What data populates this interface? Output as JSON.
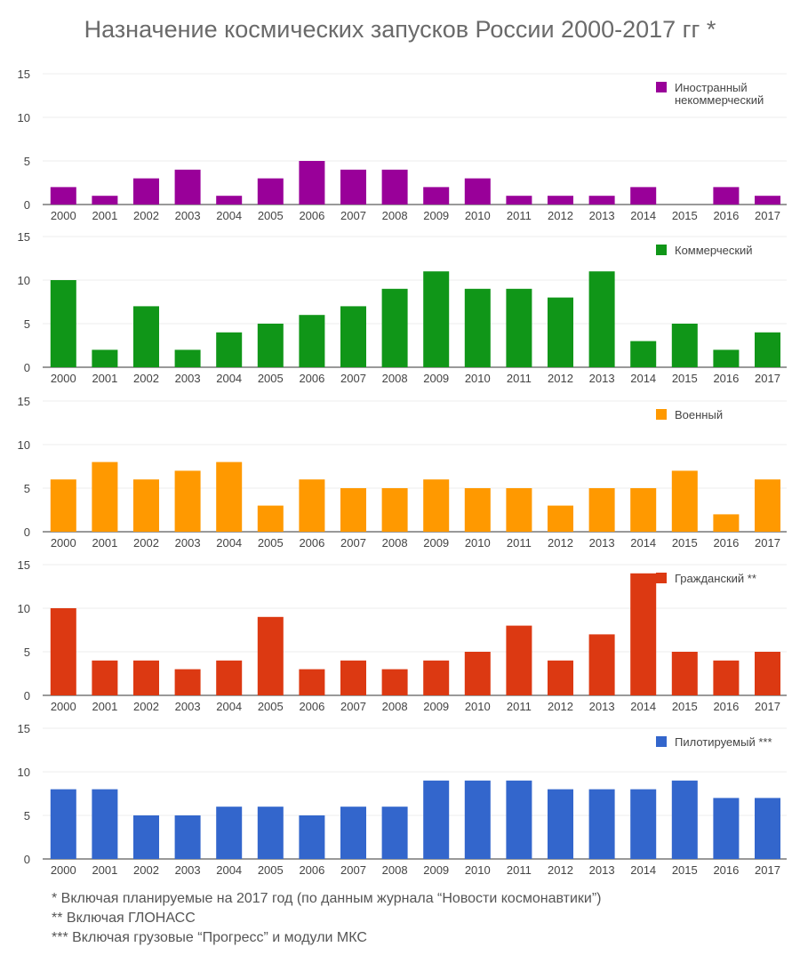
{
  "title": "Назначение космических запусков России 2000-2017 гг *",
  "chart_data": [
    {
      "type": "bar",
      "legend": "Иностранный некоммерческий",
      "legend_lines": [
        "Иностранный",
        "некоммерческий"
      ],
      "color": "#990099",
      "categories": [
        "2000",
        "2001",
        "2002",
        "2003",
        "2004",
        "2005",
        "2006",
        "2007",
        "2008",
        "2009",
        "2010",
        "2011",
        "2012",
        "2013",
        "2014",
        "2015",
        "2016",
        "2017"
      ],
      "values": [
        2,
        1,
        3,
        4,
        1,
        3,
        5,
        4,
        4,
        2,
        3,
        1,
        1,
        1,
        2,
        0,
        2,
        1
      ],
      "ylim": [
        0,
        15
      ],
      "yticks": [
        0,
        5,
        10,
        15
      ]
    },
    {
      "type": "bar",
      "legend": "Коммерческий",
      "legend_lines": [
        "Коммерческий"
      ],
      "color": "#109618",
      "categories": [
        "2000",
        "2001",
        "2002",
        "2003",
        "2004",
        "2005",
        "2006",
        "2007",
        "2008",
        "2009",
        "2010",
        "2011",
        "2012",
        "2013",
        "2014",
        "2015",
        "2016",
        "2017"
      ],
      "values": [
        10,
        2,
        7,
        2,
        4,
        5,
        6,
        7,
        9,
        11,
        9,
        9,
        8,
        11,
        3,
        5,
        2,
        4
      ],
      "ylim": [
        0,
        15
      ],
      "yticks": [
        0,
        5,
        10,
        15
      ]
    },
    {
      "type": "bar",
      "legend": "Военный",
      "legend_lines": [
        "Военный"
      ],
      "color": "#FF9900",
      "categories": [
        "2000",
        "2001",
        "2002",
        "2003",
        "2004",
        "2005",
        "2006",
        "2007",
        "2008",
        "2009",
        "2010",
        "2011",
        "2012",
        "2013",
        "2014",
        "2015",
        "2016",
        "2017"
      ],
      "values": [
        6,
        8,
        6,
        7,
        8,
        3,
        6,
        5,
        5,
        6,
        5,
        5,
        3,
        5,
        5,
        7,
        2,
        6
      ],
      "ylim": [
        0,
        15
      ],
      "yticks": [
        0,
        5,
        10,
        15
      ]
    },
    {
      "type": "bar",
      "legend": "Гражданский **",
      "legend_lines": [
        "Гражданский **"
      ],
      "color": "#DC3912",
      "categories": [
        "2000",
        "2001",
        "2002",
        "2003",
        "2004",
        "2005",
        "2006",
        "2007",
        "2008",
        "2009",
        "2010",
        "2011",
        "2012",
        "2013",
        "2014",
        "2015",
        "2016",
        "2017"
      ],
      "values": [
        10,
        4,
        4,
        3,
        4,
        9,
        3,
        4,
        3,
        4,
        5,
        8,
        4,
        7,
        14,
        5,
        4,
        5
      ],
      "ylim": [
        0,
        15
      ],
      "yticks": [
        0,
        5,
        10,
        15
      ]
    },
    {
      "type": "bar",
      "legend": "Пилотируемый ***",
      "legend_lines": [
        "Пилотируемый ***"
      ],
      "color": "#3366CC",
      "categories": [
        "2000",
        "2001",
        "2002",
        "2003",
        "2004",
        "2005",
        "2006",
        "2007",
        "2008",
        "2009",
        "2010",
        "2011",
        "2012",
        "2013",
        "2014",
        "2015",
        "2016",
        "2017"
      ],
      "values": [
        8,
        8,
        5,
        5,
        6,
        6,
        5,
        6,
        6,
        9,
        9,
        9,
        8,
        8,
        8,
        9,
        7,
        7
      ],
      "ylim": [
        0,
        15
      ],
      "yticks": [
        0,
        5,
        10,
        15
      ]
    }
  ],
  "footnotes": [
    "* Включая планируемые на 2017 год (по данным журнала “Новости космонавтики”)",
    "** Включая ГЛОНАСС",
    "*** Включая грузовые “Прогресс” и модули МКС"
  ]
}
